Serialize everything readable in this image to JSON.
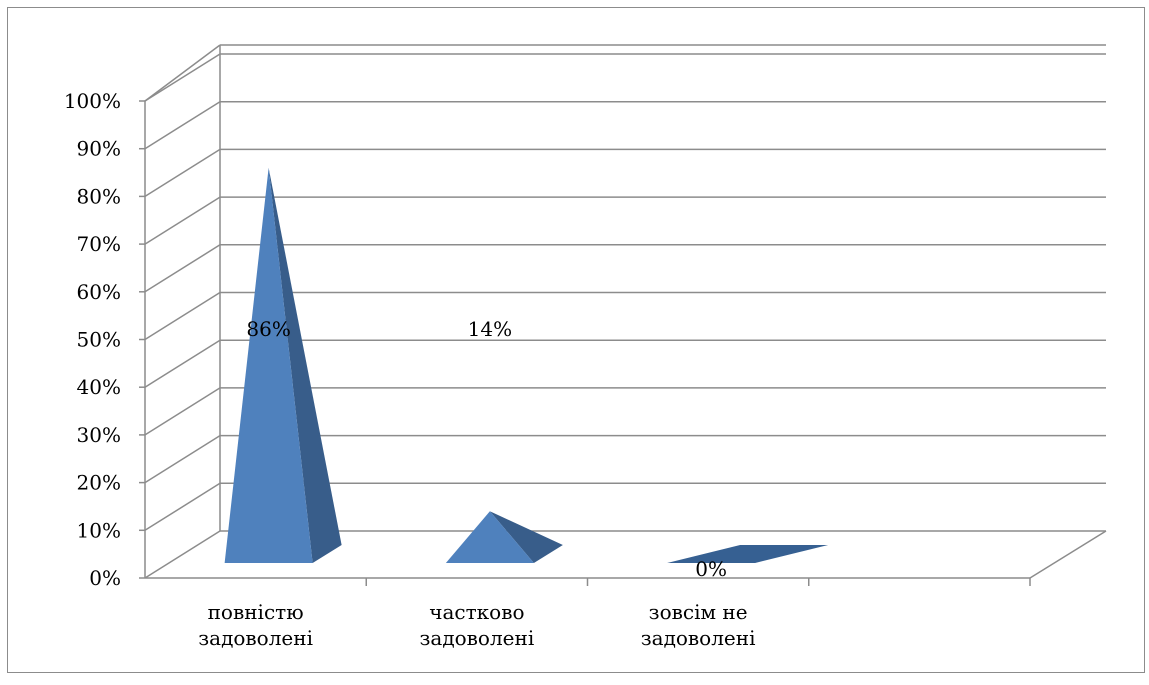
{
  "chart_data": {
    "type": "bar",
    "style": "3d-pyramid",
    "categories": [
      [
        "повністю",
        "задоволені"
      ],
      [
        "частково",
        "задоволені"
      ],
      [
        "зовсім не",
        "задоволені"
      ]
    ],
    "values": [
      0.86,
      0.14,
      0.0
    ],
    "data_labels": [
      "86%",
      "14%",
      "0%"
    ],
    "yticks": [
      "0%",
      "10%",
      "20%",
      "30%",
      "40%",
      "50%",
      "60%",
      "70%",
      "80%",
      "90%",
      "100%"
    ],
    "ylim": [
      0,
      1
    ],
    "title": "",
    "xlabel": "",
    "ylabel": "",
    "grid": true,
    "legend": "none",
    "colors": {
      "front": "#4f81bd",
      "side": "#385d8a",
      "top": "#366092",
      "grid": "#8c8c8c",
      "frame": "#8c8c8c"
    }
  }
}
